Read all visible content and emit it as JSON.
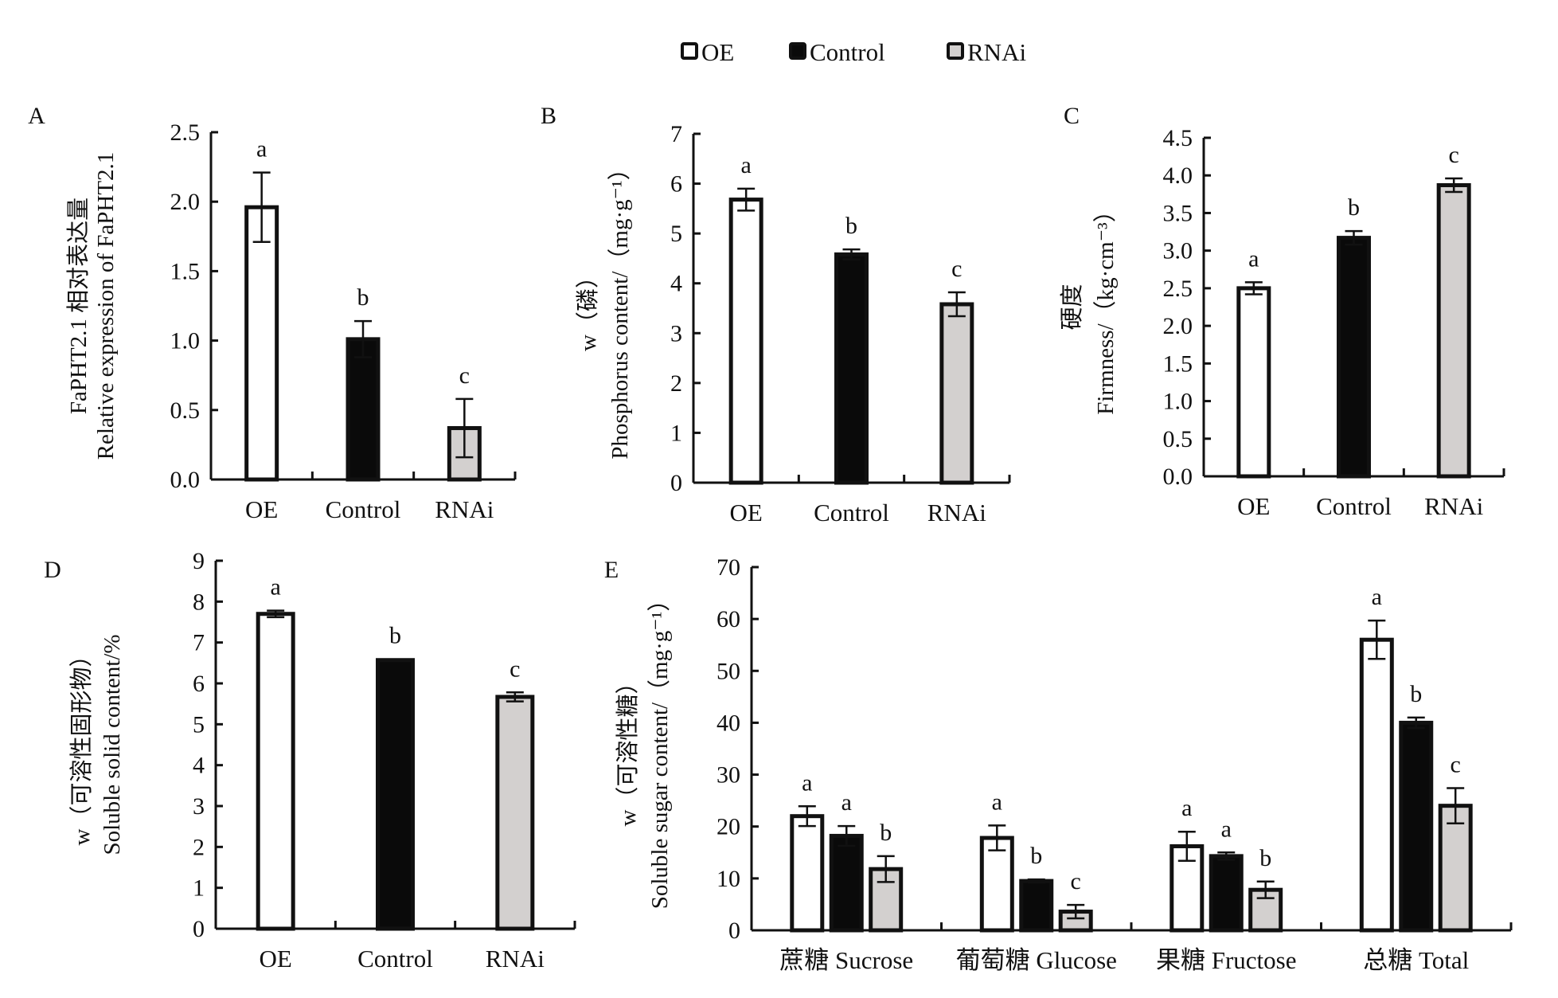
{
  "legend": {
    "items": [
      {
        "label": "OE",
        "fill": "#ffffff"
      },
      {
        "label": "Control",
        "fill": "#0a0a0a"
      },
      {
        "label": "RNAi",
        "fill": "#d3d0cf"
      }
    ],
    "placement": "top-center"
  },
  "chart_data": [
    {
      "panel": "A",
      "type": "bar",
      "ylabel_lines": [
        "FaPHT2.1 相对表达量",
        "Relative expression of FaPHT2.1"
      ],
      "categories": [
        "OE",
        "Control",
        "RNAi"
      ],
      "values": [
        1.96,
        1.01,
        0.37
      ],
      "errors": [
        0.25,
        0.13,
        0.21
      ],
      "significance": [
        "a",
        "b",
        "c"
      ],
      "ylim": [
        0,
        2.5
      ],
      "yticks": [
        "0.0",
        "0.5",
        "1.0",
        "1.5",
        "2.0",
        "2.5"
      ],
      "ytick_values": [
        0,
        0.5,
        1.0,
        1.5,
        2.0,
        2.5
      ]
    },
    {
      "panel": "B",
      "type": "bar",
      "ylabel_lines": [
        "w（磷）",
        "Phosphorus content/（mg·g⁻¹）"
      ],
      "categories": [
        "OE",
        "Control",
        "RNAi"
      ],
      "values": [
        5.68,
        4.58,
        3.58
      ],
      "errors": [
        0.22,
        0.1,
        0.24
      ],
      "significance": [
        "a",
        "b",
        "c"
      ],
      "ylim": [
        0,
        7
      ],
      "yticks": [
        "0",
        "1",
        "2",
        "3",
        "4",
        "5",
        "6",
        "7"
      ],
      "ytick_values": [
        0,
        1,
        2,
        3,
        4,
        5,
        6,
        7
      ]
    },
    {
      "panel": "C",
      "type": "bar",
      "ylabel_lines": [
        "硬度",
        "Firmness/（kg·cm⁻³）"
      ],
      "categories": [
        "OE",
        "Control",
        "RNAi"
      ],
      "values": [
        2.5,
        3.17,
        3.87
      ],
      "errors": [
        0.08,
        0.09,
        0.09
      ],
      "significance": [
        "a",
        "b",
        "c"
      ],
      "ylim": [
        0,
        4.5
      ],
      "yticks": [
        "0.0",
        "0.5",
        "1.0",
        "1.5",
        "2.0",
        "2.5",
        "3.0",
        "3.5",
        "4.0",
        "4.5"
      ],
      "ytick_values": [
        0,
        0.5,
        1.0,
        1.5,
        2.0,
        2.5,
        3.0,
        3.5,
        4.0,
        4.5
      ]
    },
    {
      "panel": "D",
      "type": "bar",
      "ylabel_lines": [
        "w（可溶性固形物）",
        "Soluble solid content/%"
      ],
      "categories": [
        "OE",
        "Control",
        "RNAi"
      ],
      "values": [
        7.7,
        6.57,
        5.67
      ],
      "errors": [
        0.08,
        0.02,
        0.11
      ],
      "significance": [
        "a",
        "b",
        "c"
      ],
      "ylim": [
        0,
        9
      ],
      "yticks": [
        "0",
        "1",
        "2",
        "3",
        "4",
        "5",
        "6",
        "7",
        "8",
        "9"
      ],
      "ytick_values": [
        0,
        1,
        2,
        3,
        4,
        5,
        6,
        7,
        8,
        9
      ]
    },
    {
      "panel": "E",
      "type": "grouped-bar",
      "ylabel_lines": [
        "w（可溶性糖）",
        "Soluble sugar content/（mg·g⁻¹）"
      ],
      "categories": [
        "蔗糖 Sucrose",
        "葡萄糖 Glucose",
        "果糖 Fructose",
        "总糖 Total"
      ],
      "series": [
        {
          "name": "OE",
          "values": [
            22.0,
            17.8,
            16.2,
            56.0
          ],
          "errors": [
            1.9,
            2.4,
            2.8,
            3.7
          ],
          "significance": [
            "a",
            "a",
            "a",
            "a"
          ]
        },
        {
          "name": "Control",
          "values": [
            18.2,
            9.5,
            14.3,
            40.0
          ],
          "errors": [
            1.9,
            0.3,
            0.7,
            1.0
          ],
          "significance": [
            "a",
            "b",
            "a",
            "b"
          ]
        },
        {
          "name": "RNAi",
          "values": [
            11.8,
            3.6,
            7.8,
            24.0
          ],
          "errors": [
            2.5,
            1.3,
            1.6,
            3.4
          ],
          "significance": [
            "b",
            "c",
            "b",
            "c"
          ]
        }
      ],
      "ylim": [
        0,
        70
      ],
      "yticks": [
        "0",
        "10",
        "20",
        "30",
        "40",
        "50",
        "60",
        "70"
      ],
      "ytick_values": [
        0,
        10,
        20,
        30,
        40,
        50,
        60,
        70
      ]
    }
  ]
}
